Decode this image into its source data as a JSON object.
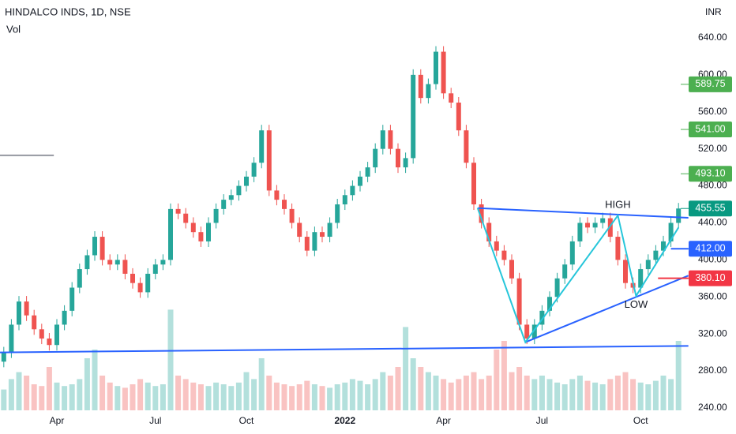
{
  "chart_data": {
    "type": "candlestick",
    "title": "HINDALCO INDS, 1D, NSE",
    "subtitle": "Vol",
    "axis_unit": "INR",
    "categories": [
      null,
      null,
      null,
      null,
      null,
      null,
      null,
      "Apr",
      null,
      null,
      null,
      null,
      null,
      null,
      null,
      null,
      null,
      null,
      null,
      null,
      "Jul",
      null,
      null,
      null,
      null,
      null,
      null,
      null,
      null,
      null,
      null,
      null,
      "Oct",
      null,
      null,
      null,
      null,
      null,
      null,
      null,
      null,
      null,
      null,
      null,
      null,
      "2022",
      null,
      null,
      null,
      null,
      null,
      null,
      null,
      null,
      null,
      null,
      null,
      null,
      "Apr",
      null,
      null,
      null,
      null,
      null,
      null,
      null,
      null,
      null,
      null,
      null,
      null,
      "Jul",
      null,
      null,
      null,
      null,
      null,
      null,
      null,
      null,
      null,
      null,
      null,
      null,
      "Oct",
      null,
      null,
      null,
      null,
      null
    ],
    "open": [
      290,
      300,
      330,
      355,
      340,
      325,
      315,
      308,
      330,
      345,
      370,
      390,
      405,
      425,
      400,
      395,
      400,
      385,
      375,
      365,
      385,
      395,
      400,
      455,
      450,
      440,
      430,
      420,
      440,
      455,
      465,
      470,
      480,
      490,
      505,
      540,
      475,
      465,
      455,
      440,
      425,
      410,
      430,
      425,
      440,
      460,
      470,
      480,
      490,
      500,
      520,
      540,
      520,
      500,
      510,
      600,
      575,
      590,
      625,
      580,
      570,
      540,
      505,
      460,
      440,
      420,
      410,
      400,
      380,
      330,
      315,
      330,
      345,
      360,
      380,
      395,
      420,
      440,
      435,
      440,
      445,
      425,
      400,
      375,
      370,
      390,
      400,
      410,
      420,
      440
    ],
    "high": [
      306,
      336,
      361,
      361,
      346,
      331,
      321,
      336,
      351,
      376,
      396,
      411,
      431,
      431,
      406,
      406,
      406,
      391,
      381,
      391,
      401,
      406,
      461,
      461,
      456,
      446,
      436,
      446,
      461,
      471,
      476,
      486,
      496,
      511,
      546,
      546,
      481,
      471,
      461,
      446,
      431,
      436,
      436,
      446,
      466,
      476,
      486,
      496,
      506,
      526,
      546,
      546,
      526,
      516,
      606,
      606,
      596,
      631,
      631,
      586,
      576,
      546,
      511,
      466,
      446,
      426,
      416,
      406,
      386,
      336,
      336,
      351,
      366,
      386,
      401,
      426,
      446,
      446,
      446,
      451,
      451,
      431,
      406,
      381,
      396,
      406,
      416,
      426,
      446,
      461.55
    ],
    "low": [
      284,
      294,
      324,
      334,
      319,
      309,
      302,
      302,
      324,
      339,
      364,
      384,
      399,
      394,
      389,
      389,
      379,
      369,
      359,
      359,
      379,
      389,
      394,
      444,
      434,
      424,
      414,
      414,
      434,
      449,
      459,
      464,
      474,
      484,
      499,
      469,
      459,
      449,
      434,
      419,
      404,
      404,
      419,
      419,
      434,
      454,
      464,
      474,
      484,
      494,
      514,
      514,
      494,
      494,
      504,
      569,
      569,
      584,
      574,
      564,
      534,
      499,
      454,
      434,
      414,
      404,
      394,
      374,
      324,
      309,
      309,
      324,
      339,
      354,
      374,
      389,
      414,
      429,
      429,
      434,
      419,
      394,
      369,
      364,
      364,
      384,
      394,
      404,
      414,
      434
    ],
    "close": [
      300,
      330,
      355,
      340,
      325,
      315,
      308,
      330,
      345,
      370,
      390,
      405,
      425,
      400,
      395,
      400,
      385,
      375,
      365,
      385,
      395,
      400,
      455,
      450,
      440,
      430,
      420,
      440,
      455,
      465,
      470,
      480,
      490,
      505,
      540,
      475,
      465,
      455,
      440,
      425,
      410,
      430,
      425,
      440,
      460,
      470,
      480,
      490,
      500,
      520,
      540,
      520,
      500,
      510,
      600,
      575,
      590,
      625,
      580,
      570,
      540,
      505,
      460,
      440,
      420,
      410,
      400,
      380,
      330,
      315,
      330,
      345,
      360,
      380,
      395,
      420,
      440,
      435,
      440,
      445,
      425,
      400,
      375,
      370,
      390,
      400,
      410,
      420,
      440,
      455.55
    ],
    "volume": [
      12,
      18,
      22,
      20,
      15,
      14,
      25,
      16,
      14,
      15,
      18,
      30,
      35,
      20,
      16,
      14,
      13,
      15,
      18,
      16,
      14,
      15,
      58,
      20,
      18,
      16,
      15,
      14,
      16,
      15,
      14,
      16,
      22,
      18,
      30,
      20,
      16,
      15,
      14,
      15,
      17,
      15,
      14,
      13,
      15,
      16,
      18,
      17,
      15,
      18,
      22,
      20,
      25,
      48,
      30,
      25,
      22,
      20,
      18,
      16,
      18,
      20,
      22,
      18,
      20,
      35,
      40,
      22,
      25,
      20,
      18,
      20,
      18,
      16,
      15,
      18,
      20,
      17,
      16,
      15,
      18,
      20,
      22,
      18,
      16,
      15,
      17,
      20,
      18,
      40
    ],
    "up_color": "#26a69a",
    "down_color": "#ef5350",
    "ylim": [
      237.4,
      680.9
    ],
    "yticks": [
      {
        "value": 240,
        "label": "240.00"
      },
      {
        "value": 280,
        "label": "280.00"
      },
      {
        "value": 320,
        "label": "320.00"
      },
      {
        "value": 360,
        "label": "360.00"
      },
      {
        "value": 400,
        "label": "400.00"
      },
      {
        "value": 440,
        "label": "440.00"
      },
      {
        "value": 480,
        "label": "480.00"
      },
      {
        "value": 520,
        "label": "520.00"
      },
      {
        "value": 560,
        "label": "560.00"
      },
      {
        "value": 600,
        "label": "600.00"
      },
      {
        "value": 640,
        "label": "640.00"
      }
    ],
    "levels": [
      {
        "value": 589.75,
        "label": "589.75",
        "color": "#4caf50"
      },
      {
        "value": 541,
        "label": "541.00",
        "color": "#4caf50"
      },
      {
        "value": 493.1,
        "label": "493.10",
        "color": "#4caf50"
      },
      {
        "value": 455.55,
        "label": "455.55",
        "color": "#089981"
      },
      {
        "value": 412,
        "label": "412.00",
        "color": "#2962ff"
      },
      {
        "value": 380.1,
        "label": "380.10",
        "color": "#f23645"
      }
    ],
    "drawings": [
      {
        "color": "#2962ff",
        "points": [
          [
            -0.5,
            300
          ],
          [
            90.3,
            307
          ]
        ]
      },
      {
        "color": "#2962ff",
        "points": [
          [
            62.5,
            456
          ],
          [
            90.3,
            445.5
          ]
        ]
      },
      {
        "color": "#2962ff",
        "points": [
          [
            68.8,
            311
          ],
          [
            90.3,
            383
          ]
        ]
      },
      {
        "color": "#26c6da",
        "points": [
          [
            62.5,
            456
          ],
          [
            68.8,
            311
          ],
          [
            81,
            448
          ],
          [
            83.4,
            361
          ],
          [
            89,
            435
          ]
        ]
      },
      {
        "color": "#9598a1",
        "points": [
          [
            -0.5,
            513
          ],
          [
            6.6,
            513
          ]
        ]
      },
      {
        "color": "#2962ff",
        "points": [
          [
            88,
            412
          ],
          [
            90.3,
            412
          ]
        ]
      },
      {
        "color": "#f23645",
        "points": [
          [
            86.3,
            380.1
          ],
          [
            90.3,
            380.1
          ]
        ]
      }
    ],
    "annotations": [
      {
        "text": "HIGH",
        "x": 81,
        "y": 459
      },
      {
        "text": "LOW",
        "x": 83.4,
        "y": 351
      }
    ]
  }
}
